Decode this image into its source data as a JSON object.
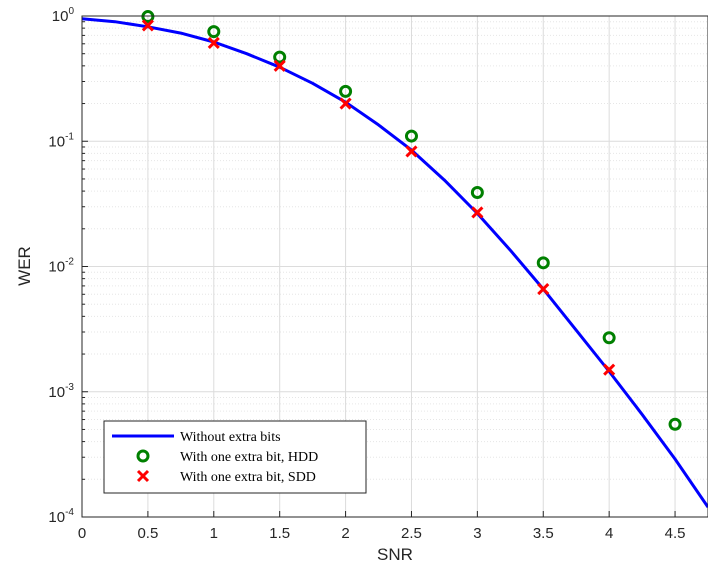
{
  "chart_data": {
    "type": "line",
    "xlabel": "SNR",
    "ylabel": "WER",
    "xlim": [
      0,
      4.75
    ],
    "ylim": [
      0.0001,
      1
    ],
    "y_scale": "log",
    "grid": true,
    "minor_grid": true,
    "legend_position": "bottom-left",
    "x_ticks": [
      "0",
      "0.5",
      "1",
      "1.5",
      "2",
      "2.5",
      "3",
      "3.5",
      "4",
      "4.5"
    ],
    "y_ticks": [
      {
        "base": "10",
        "exp": "0",
        "value": 1
      },
      {
        "base": "10",
        "exp": "-1",
        "value": 0.1
      },
      {
        "base": "10",
        "exp": "-2",
        "value": 0.01
      },
      {
        "base": "10",
        "exp": "-3",
        "value": 0.001
      },
      {
        "base": "10",
        "exp": "-4",
        "value": 0.0001
      }
    ],
    "series": [
      {
        "name": "Without extra bits",
        "style": "line",
        "color": "#0000ff",
        "x": [
          0,
          0.25,
          0.5,
          0.75,
          1,
          1.25,
          1.5,
          1.75,
          2,
          2.25,
          2.5,
          2.75,
          3,
          3.25,
          3.5,
          3.75,
          4,
          4.25,
          4.5,
          4.75
        ],
        "y": [
          0.95,
          0.9,
          0.82,
          0.73,
          0.62,
          0.5,
          0.39,
          0.29,
          0.205,
          0.135,
          0.085,
          0.049,
          0.0265,
          0.0135,
          0.0066,
          0.0031,
          0.00145,
          0.00066,
          0.00029,
          0.00012
        ]
      },
      {
        "name": "With one extra bit, HDD",
        "style": "marker-circle",
        "color": "#008000",
        "x": [
          0.5,
          1,
          1.5,
          2,
          2.5,
          3,
          3.5,
          4,
          4.5
        ],
        "y": [
          0.99,
          0.75,
          0.47,
          0.25,
          0.11,
          0.039,
          0.0107,
          0.0027,
          0.00055
        ]
      },
      {
        "name": "With one extra bit, SDD",
        "style": "marker-x",
        "color": "#ff0000",
        "x": [
          0.5,
          1,
          1.5,
          2,
          2.5,
          3,
          3.5,
          4
        ],
        "y": [
          0.84,
          0.61,
          0.4,
          0.2,
          0.083,
          0.027,
          0.0066,
          0.0015
        ]
      }
    ]
  }
}
